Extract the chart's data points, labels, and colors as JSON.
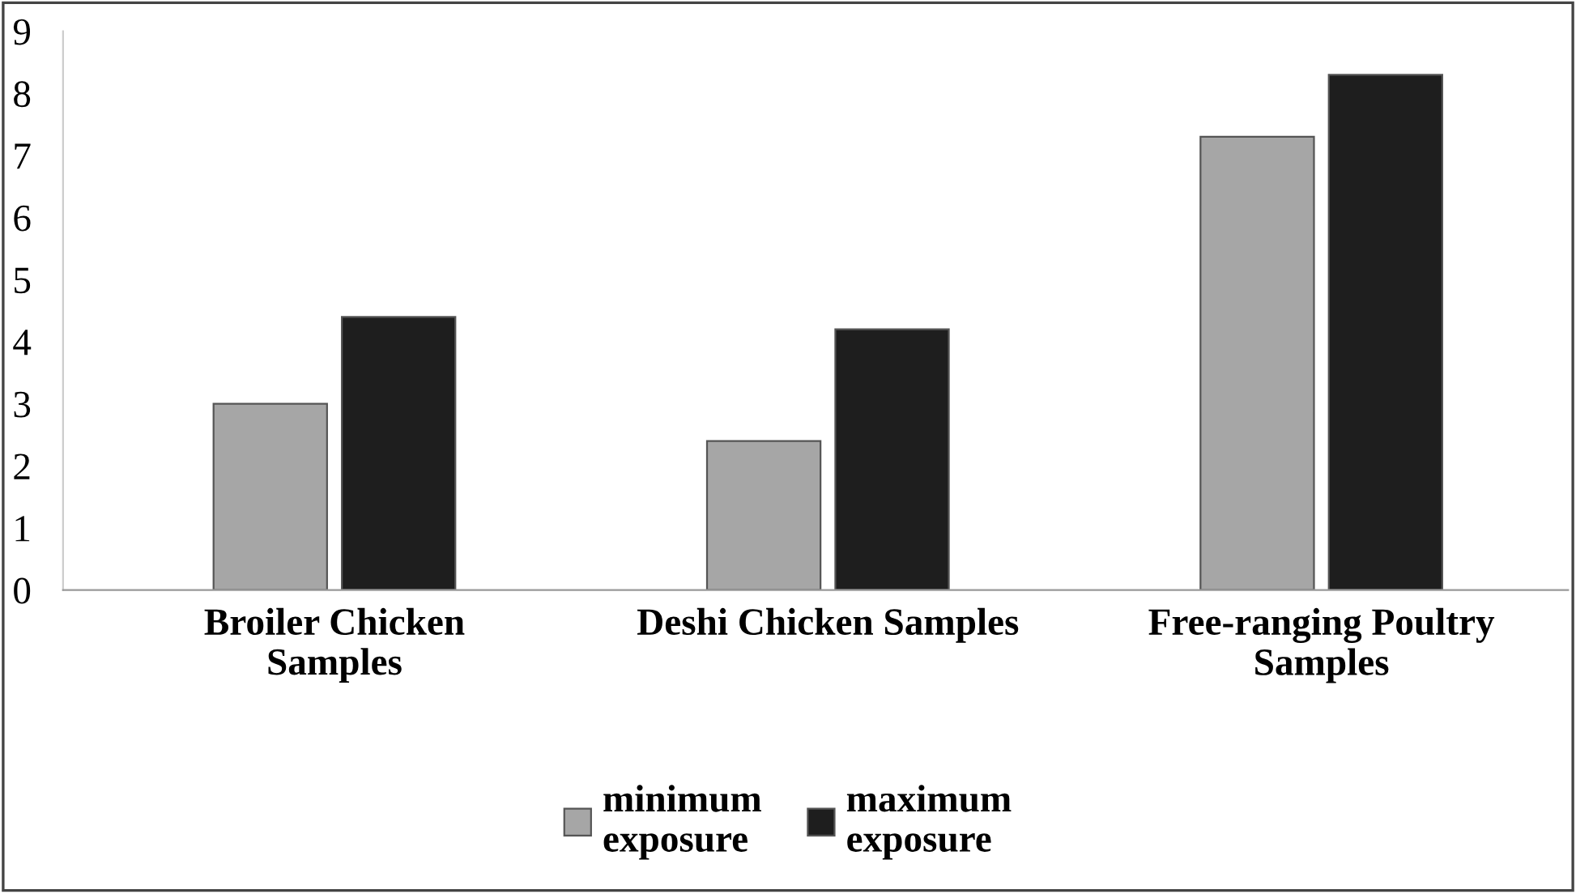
{
  "chart_data": {
    "type": "bar",
    "categories": [
      "Broiler Chicken\nSamples",
      "Deshi Chicken Samples",
      "Free-ranging Poultry\nSamples"
    ],
    "series": [
      {
        "name": "minimum\nexposure",
        "color": "#a6a6a6",
        "values": [
          3.0,
          2.4,
          7.3
        ]
      },
      {
        "name": "maximum\nexposure",
        "color": "#1e1e1e",
        "values": [
          4.4,
          4.2,
          8.3
        ]
      }
    ],
    "ylim": [
      0,
      9
    ],
    "yticks": [
      0,
      1,
      2,
      3,
      4,
      5,
      6,
      7,
      8,
      9
    ],
    "grid": false,
    "legend": "bottom"
  }
}
